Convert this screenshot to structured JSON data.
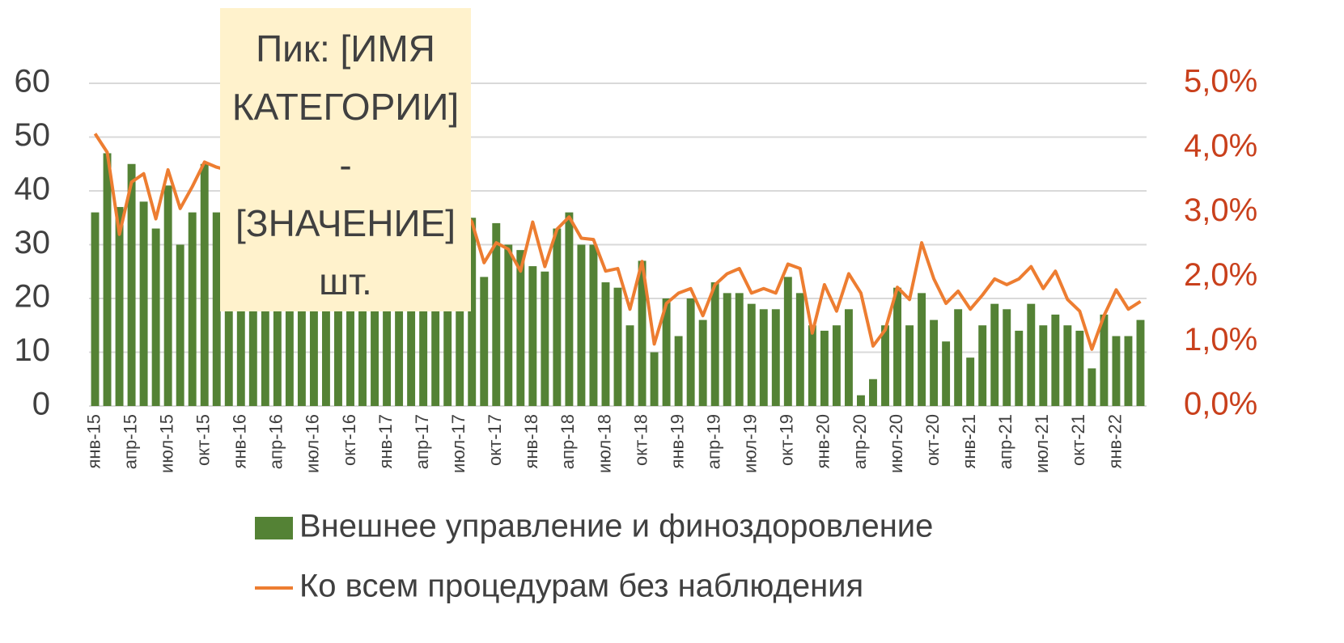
{
  "chart_data": {
    "type": "bar",
    "annotation": "Пик: [ИМЯ КАТЕГОРИИ] - [ЗНАЧЕНИЕ] шт.",
    "categories": [
      "янв-15",
      null,
      null,
      "апр-15",
      null,
      null,
      "июл-15",
      null,
      null,
      "окт-15",
      null,
      null,
      "янв-16",
      null,
      null,
      "апр-16",
      null,
      null,
      "июл-16",
      null,
      null,
      "окт-16",
      null,
      null,
      "янв-17",
      null,
      null,
      "апр-17",
      null,
      null,
      "июл-17",
      null,
      null,
      "окт-17",
      null,
      null,
      "янв-18",
      null,
      null,
      "апр-18",
      null,
      null,
      "июл-18",
      null,
      null,
      "окт-18",
      null,
      null,
      "янв-19",
      null,
      null,
      "апр-19",
      null,
      null,
      "июл-19",
      null,
      null,
      "окт-19",
      null,
      null,
      "янв-20",
      null,
      null,
      "апр-20",
      null,
      null,
      "июл-20",
      null,
      null,
      "окт-20",
      null,
      null,
      "янв-21",
      null,
      null,
      "апр-21",
      null,
      null,
      "июл-21",
      null,
      null,
      "окт-21",
      null,
      null,
      "янв-22",
      null,
      null
    ],
    "series": [
      {
        "name": "Внешнее управление и финоздоровление",
        "type": "bar",
        "color": "#548235",
        "axis": "y",
        "values": [
          36,
          47,
          37,
          45,
          38,
          33,
          41,
          30,
          36,
          45,
          36,
          36,
          33,
          35,
          30,
          32,
          28,
          30,
          27,
          29,
          31,
          30,
          28,
          27,
          33,
          30,
          31,
          28,
          32,
          30,
          36,
          35,
          24,
          34,
          30,
          29,
          26,
          25,
          33,
          36,
          30,
          30,
          23,
          22,
          15,
          27,
          10,
          20,
          13,
          20,
          16,
          23,
          21,
          21,
          19,
          18,
          18,
          24,
          21,
          15,
          14,
          15,
          18,
          2,
          5,
          15,
          22,
          15,
          21,
          16,
          12,
          18,
          9,
          15,
          19,
          18,
          14,
          19,
          15,
          17,
          15,
          14,
          7,
          17,
          13,
          13,
          16
        ]
      },
      {
        "name": "Ко всем процедурам без наблюдения",
        "type": "line",
        "color": "#ed7d31",
        "axis": "y2",
        "values": [
          4.22,
          3.93,
          2.66,
          3.47,
          3.6,
          2.9,
          3.66,
          3.06,
          3.4,
          3.78,
          3.7,
          3.65,
          3.5,
          3.6,
          3.4,
          3.3,
          3.5,
          3.2,
          3.4,
          3.1,
          3.3,
          3.2,
          3.0,
          3.1,
          3.3,
          2.9,
          3.1,
          3.0,
          3.2,
          2.9,
          3.1,
          2.85,
          2.22,
          2.53,
          2.43,
          2.09,
          2.85,
          2.16,
          2.74,
          2.93,
          2.6,
          2.58,
          2.09,
          2.13,
          1.5,
          2.24,
          0.96,
          1.59,
          1.75,
          1.82,
          1.4,
          1.88,
          2.05,
          2.13,
          1.75,
          1.82,
          1.75,
          2.2,
          2.13,
          1.13,
          1.88,
          1.47,
          2.05,
          1.75,
          0.93,
          1.18,
          1.84,
          1.65,
          2.53,
          1.97,
          1.59,
          1.78,
          1.5,
          1.72,
          1.97,
          1.88,
          1.97,
          2.16,
          1.82,
          2.09,
          1.65,
          1.47,
          0.88,
          1.4,
          1.8,
          1.5,
          1.62
        ]
      }
    ],
    "ylim": [
      0,
      60
    ],
    "yticks": [
      0,
      10,
      20,
      30,
      40,
      50,
      60
    ],
    "y2lim": [
      0,
      5
    ],
    "y2ticks": [
      {
        "value": 0,
        "label": "0,0%"
      },
      {
        "value": 1,
        "label": "1,0%"
      },
      {
        "value": 2,
        "label": "2,0%"
      },
      {
        "value": 3,
        "label": "3,0%"
      },
      {
        "value": 4,
        "label": "4,0%"
      },
      {
        "value": 5,
        "label": "5,0%"
      }
    ],
    "grid": true,
    "legend": "bottom"
  }
}
